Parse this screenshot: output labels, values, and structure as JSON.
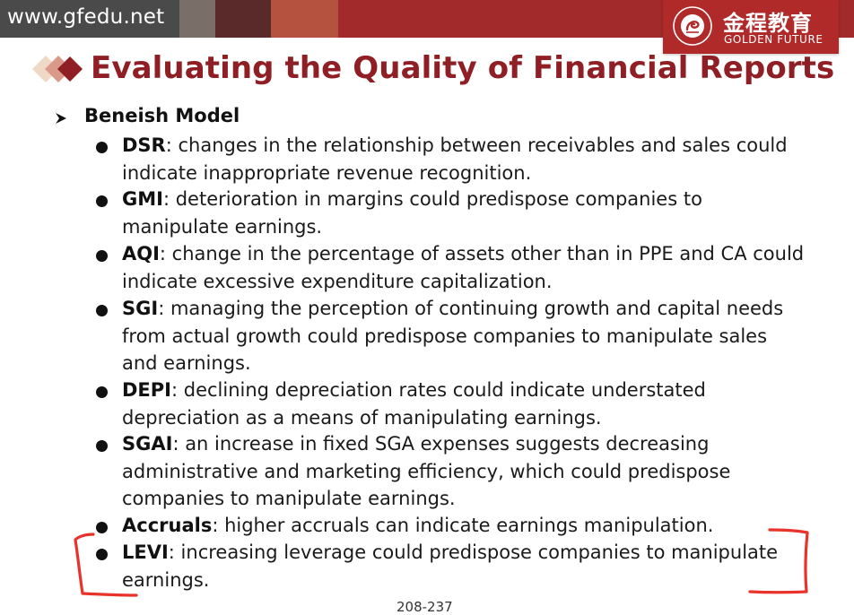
{
  "header": {
    "site_url": "www.gfedu.net",
    "logo_cn": "金程教育",
    "logo_en": "GOLDEN FUTURE",
    "brand_color": "#a32a2a"
  },
  "slide": {
    "title": "Evaluating the Quality of Financial Reports",
    "title_color": "#8f1f24",
    "section": "Beneish Model",
    "items": [
      {
        "term": "DSR",
        "desc_lines": [
          ": changes in the relationship between receivables and sales could",
          "indicate inappropriate revenue recognition."
        ]
      },
      {
        "term": "GMI",
        "desc_lines": [
          ": deterioration in margins could predispose companies to",
          "manipulate earnings."
        ]
      },
      {
        "term": "AQI",
        "desc_lines": [
          ": change in the percentage of assets other than in PPE and CA could",
          "indicate excessive expenditure capitalization."
        ]
      },
      {
        "term": "SGI",
        "desc_lines": [
          ": managing the perception of continuing growth and capital needs",
          "from actual growth could predispose companies to manipulate sales",
          "and earnings."
        ]
      },
      {
        "term": "DEPI",
        "desc_lines": [
          ": declining depreciation rates could indicate understated",
          "depreciation as a means of manipulating earnings."
        ]
      },
      {
        "term": "SGAI",
        "desc_lines": [
          ": an increase in fixed SGA expenses suggests decreasing",
          "administrative and marketing efficiency, which could predispose",
          "companies to manipulate earnings."
        ]
      },
      {
        "term": "Accruals",
        "desc_lines": [
          ": higher accruals can indicate earnings manipulation."
        ]
      },
      {
        "term": "LEVI",
        "desc_lines": [
          ": increasing leverage could predispose companies to manipulate",
          "earnings."
        ]
      }
    ],
    "page_number": "208-237"
  },
  "annotation": {
    "color": "#e8322a",
    "shape": "hand-drawn-brackets"
  }
}
